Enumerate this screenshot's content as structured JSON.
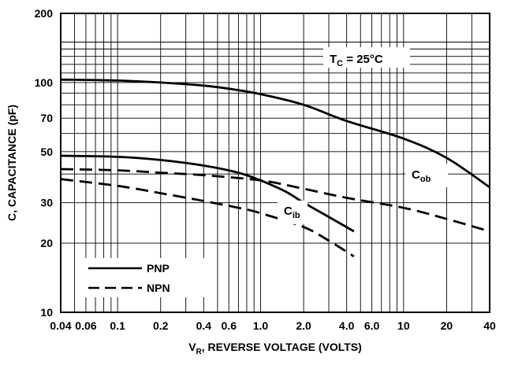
{
  "chart_data": {
    "type": "line",
    "xlabel_main": "V",
    "xlabel_sub": "R",
    "xlabel_rest": ", REVERSE VOLTAGE (VOLTS)",
    "ylabel": "C, CAPACITANCE (pF)",
    "xscale": "log",
    "yscale": "log",
    "xlim": [
      0.04,
      40
    ],
    "ylim": [
      10,
      200
    ],
    "grid": true,
    "x_ticks": [
      "0.04",
      "0.06",
      "0.1",
      "0.2",
      "0.4",
      "0.6",
      "1.0",
      "2.0",
      "4.0",
      "6.0",
      "10",
      "20",
      "40"
    ],
    "x_tick_values": [
      0.04,
      0.06,
      0.1,
      0.2,
      0.4,
      0.6,
      1.0,
      2.0,
      4.0,
      6.0,
      10,
      20,
      40
    ],
    "y_ticks": [
      "10",
      "20",
      "30",
      "50",
      "70",
      "100",
      "200"
    ],
    "y_tick_values": [
      10,
      20,
      30,
      50,
      70,
      100,
      200
    ],
    "annotations": {
      "tc_main": "T",
      "tc_sub": "C",
      "tc_rest": " = 25°C",
      "cob_main": "C",
      "cob_sub": "ob",
      "cib_main": "C",
      "cib_sub": "ib"
    },
    "legend": {
      "placement": "bottom-left",
      "entries": [
        {
          "label": "PNP",
          "style": "solid"
        },
        {
          "label": "NPN",
          "style": "dashed"
        }
      ]
    },
    "series": [
      {
        "group": "Cob",
        "type": "PNP",
        "style": "solid",
        "x": [
          0.04,
          0.1,
          0.2,
          0.4,
          0.6,
          1.0,
          2.0,
          4.0,
          10,
          20,
          40
        ],
        "y": [
          103,
          102,
          100,
          97,
          94,
          89,
          80,
          68,
          57,
          47,
          35
        ]
      },
      {
        "group": "Cob",
        "type": "NPN",
        "style": "dashed",
        "x": [
          0.04,
          0.1,
          0.2,
          0.4,
          1.0,
          2.0,
          4.0,
          10,
          20,
          40
        ],
        "y": [
          42,
          41.5,
          40.5,
          39.5,
          37.5,
          34.5,
          31.5,
          28.5,
          25.5,
          22.5
        ]
      },
      {
        "group": "Cib",
        "type": "PNP",
        "style": "solid",
        "x": [
          0.04,
          0.1,
          0.2,
          0.4,
          0.7,
          1.0,
          1.5,
          2.0,
          3.0,
          4.5
        ],
        "y": [
          48,
          47.5,
          46,
          43.5,
          40.5,
          37.5,
          33.5,
          30,
          26,
          22.5
        ]
      },
      {
        "group": "Cib",
        "type": "NPN",
        "style": "dashed",
        "x": [
          0.04,
          0.1,
          0.2,
          0.4,
          0.7,
          1.0,
          2.0,
          3.0,
          4.5
        ],
        "y": [
          38,
          35.5,
          33,
          30.5,
          28.5,
          27,
          23.5,
          20.5,
          17.5
        ]
      }
    ]
  }
}
